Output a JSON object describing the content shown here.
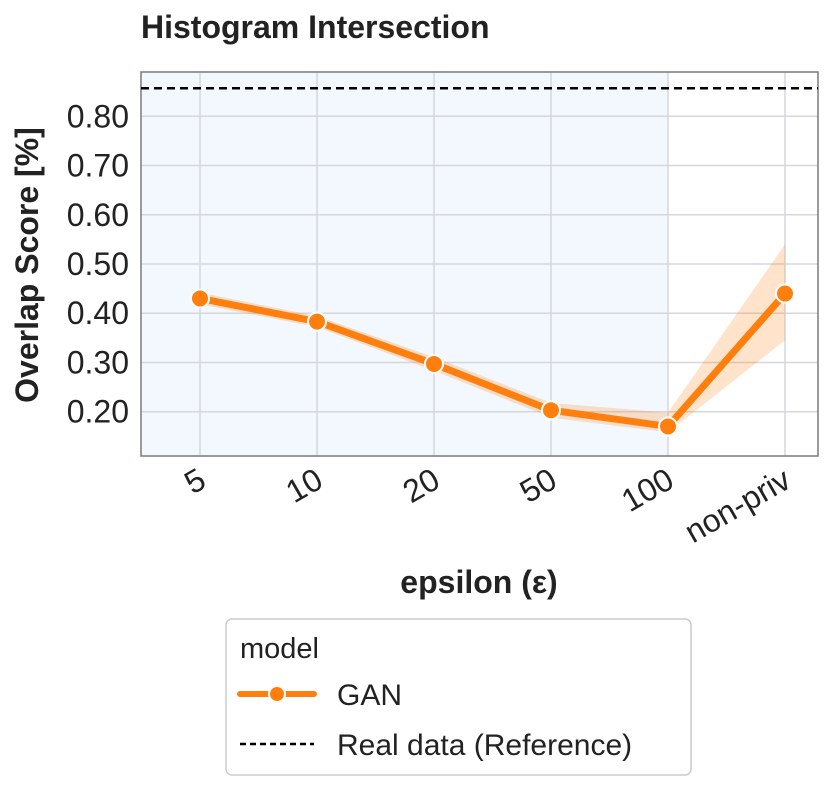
{
  "chart_data": {
    "type": "line",
    "title": "Histogram Intersection",
    "xlabel": "epsilon (ε)",
    "ylabel": "Overlap Score [%]",
    "categories": [
      "5",
      "10",
      "20",
      "50",
      "100",
      "non-priv"
    ],
    "ylim": [
      0.11,
      0.89
    ],
    "yticks": [
      "0.20",
      "0.30",
      "0.40",
      "0.50",
      "0.60",
      "0.70",
      "0.80"
    ],
    "grid": true,
    "series": [
      {
        "name": "GAN",
        "color": "#ff7f0e",
        "values": [
          0.43,
          0.383,
          0.297,
          0.203,
          0.17,
          0.44
        ],
        "ci_low": [
          0.418,
          0.372,
          0.283,
          0.188,
          0.158,
          0.345
        ],
        "ci_high": [
          0.442,
          0.394,
          0.311,
          0.218,
          0.198,
          0.54
        ]
      }
    ],
    "reference": {
      "name": "Real data (Reference)",
      "value": 0.857,
      "color": "#000000",
      "style": "dashed"
    },
    "shaded_region": {
      "from_category": "5",
      "to_category": "100",
      "color": "#f3f8fe"
    },
    "legend": {
      "title": "model",
      "placement": "bottom-center",
      "entries": [
        "GAN",
        "Real data (Reference)"
      ]
    }
  }
}
